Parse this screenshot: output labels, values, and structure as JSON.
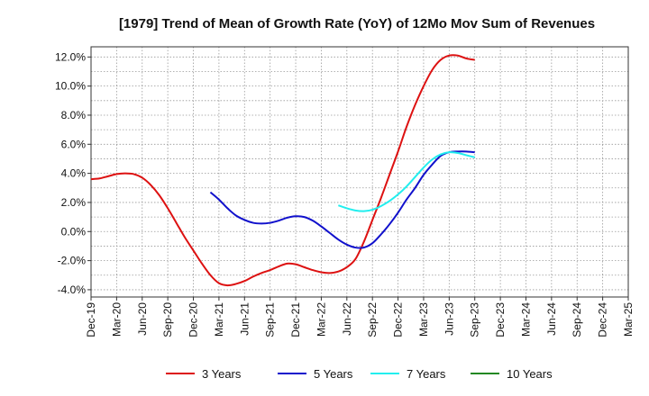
{
  "chart_data": {
    "type": "line",
    "title": "[1979]  Trend of Mean of Growth Rate (YoY) of 12Mo Mov Sum of Revenues",
    "xlabel": "",
    "ylabel": "",
    "ylim": [
      -4.5,
      12.7
    ],
    "yticks": [
      {
        "value": 12,
        "label": "12.0%"
      },
      {
        "value": 10,
        "label": "10.0%"
      },
      {
        "value": 8,
        "label": "8.0%"
      },
      {
        "value": 6,
        "label": "6.0%"
      },
      {
        "value": 4,
        "label": "4.0%"
      },
      {
        "value": 2,
        "label": "2.0%"
      },
      {
        "value": 0,
        "label": "0.0%"
      },
      {
        "value": -2,
        "label": "-2.0%"
      },
      {
        "value": -4,
        "label": "-4.0%"
      }
    ],
    "xticks": [
      "Dec-19",
      "Mar-20",
      "Jun-20",
      "Sep-20",
      "Dec-20",
      "Mar-21",
      "Jun-21",
      "Sep-21",
      "Dec-21",
      "Mar-22",
      "Jun-22",
      "Sep-22",
      "Dec-22",
      "Mar-23",
      "Jun-23",
      "Sep-23",
      "Dec-23",
      "Mar-24",
      "Jun-24",
      "Sep-24",
      "Dec-24",
      "Mar-25"
    ],
    "grid": true,
    "legend_position": "bottom",
    "series": [
      {
        "name": "3 Years",
        "color": "#dd1111",
        "x": [
          0,
          1,
          2,
          3,
          4,
          5,
          6,
          7,
          8,
          9,
          10,
          11,
          12,
          13,
          14,
          15,
          16,
          17,
          18,
          19,
          20,
          21,
          22,
          23,
          24,
          25,
          26,
          27,
          28,
          29,
          30,
          31,
          32,
          33,
          34,
          35,
          36,
          37,
          38,
          39,
          40,
          41,
          42,
          43,
          44,
          45,
          46,
          47,
          48,
          49,
          50,
          51,
          52,
          53,
          54,
          55,
          56,
          57,
          58,
          59,
          60
        ],
        "values": [
          3.6,
          3.65,
          3.8,
          3.95,
          4.0,
          3.95,
          3.7,
          3.2,
          2.5,
          1.6,
          0.6,
          -0.4,
          -1.3,
          -2.2,
          -3.0,
          -3.55,
          -3.7,
          -3.6,
          -3.4,
          -3.1,
          -2.85,
          -2.65,
          -2.4,
          -2.2,
          -2.25,
          -2.45,
          -2.65,
          -2.8,
          -2.85,
          -2.75,
          -2.45,
          -1.9,
          -0.7,
          0.8,
          2.3,
          3.9,
          5.5,
          7.2,
          8.7,
          10.0,
          11.1,
          11.8,
          12.1,
          12.1,
          11.9,
          11.8,
          null,
          null,
          null,
          null,
          null,
          null,
          null,
          null,
          null,
          null,
          null,
          null,
          null,
          null,
          null
        ]
      },
      {
        "name": "5 Years",
        "color": "#1111cc",
        "x": [
          14,
          15,
          16,
          17,
          18,
          19,
          20,
          21,
          22,
          23,
          24,
          25,
          26,
          27,
          28,
          29,
          30,
          31,
          32,
          33,
          34,
          35,
          36,
          37,
          38,
          39,
          40,
          41,
          42,
          43,
          44,
          45
        ],
        "values": [
          2.7,
          2.2,
          1.6,
          1.1,
          0.8,
          0.6,
          0.55,
          0.6,
          0.75,
          0.95,
          1.05,
          1.0,
          0.75,
          0.35,
          -0.1,
          -0.55,
          -0.9,
          -1.1,
          -1.1,
          -0.8,
          -0.2,
          0.5,
          1.3,
          2.2,
          3.0,
          3.9,
          4.6,
          5.2,
          5.45,
          5.5,
          5.5,
          5.45
        ]
      },
      {
        "name": "7 Years",
        "color": "#22eeee",
        "x": [
          29,
          30,
          31,
          32,
          33,
          34,
          35,
          36,
          37,
          38,
          39,
          40,
          41,
          42,
          43,
          44,
          45
        ],
        "values": [
          1.8,
          1.6,
          1.45,
          1.4,
          1.5,
          1.75,
          2.1,
          2.55,
          3.1,
          3.75,
          4.4,
          4.95,
          5.3,
          5.45,
          5.4,
          5.25,
          5.1
        ]
      },
      {
        "name": "10 Years",
        "color": "#228822",
        "x": [],
        "values": []
      }
    ]
  }
}
